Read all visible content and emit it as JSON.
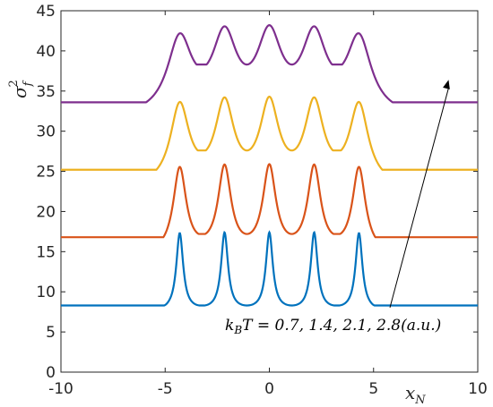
{
  "chart_data": {
    "type": "line",
    "xlabel": "x",
    "xlabel_sub": "N",
    "ylabel": "σ",
    "ylabel_sub": "f",
    "ylabel_sup": "2",
    "xlim": [
      -10,
      10
    ],
    "ylim": [
      0,
      45
    ],
    "xticks": [
      -10,
      -5,
      0,
      5,
      10
    ],
    "yticks": [
      0,
      5,
      10,
      15,
      20,
      25,
      30,
      35,
      40,
      45
    ],
    "grid": false,
    "peak_positions": [
      -4.3,
      -2.15,
      0,
      2.15,
      4.3
    ],
    "annotation": {
      "text": "k_BT = 0.7, 1.4, 2.1, 2.8(a.u.)",
      "label_x": 5.7,
      "label_y": 5.8,
      "arrow_head_x": 8.6,
      "arrow_head_y": 36.4
    },
    "series": [
      {
        "kBT": 0.7,
        "color": "#0072BD",
        "baseline": 8.3,
        "peak": 17.4,
        "trough": 8.3,
        "width": 0.2
      },
      {
        "kBT": 1.4,
        "color": "#D95319",
        "baseline": 16.8,
        "peak": 25.9,
        "trough": 17.2,
        "width": 0.38
      },
      {
        "kBT": 2.1,
        "color": "#EDB120",
        "baseline": 25.2,
        "peak": 34.3,
        "trough": 27.6,
        "width": 0.55
      },
      {
        "kBT": 2.8,
        "color": "#7E2F8E",
        "baseline": 33.6,
        "peak": 43.2,
        "trough": 38.3,
        "width": 0.72
      }
    ]
  }
}
